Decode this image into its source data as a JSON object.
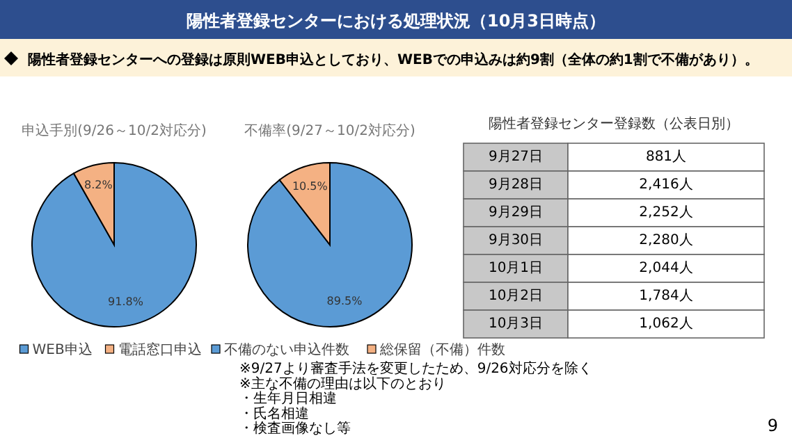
{
  "chart_data": [
    {
      "type": "other",
      "title": "陽性者登録センターにおける処理状況（10月3日時点）",
      "subtitle": "陽性者登録センターへの登録は原則WEB申込としており、WEBでの申込みは約9割（全体の約1割で不備があり）。",
      "annotations": [
        "9"
      ]
    },
    {
      "type": "pie",
      "title": "申込手別(9/26～10/2対応分)",
      "categories": [
        "WEB申込",
        "電話窓口申込"
      ],
      "values": [
        91.8,
        8.2
      ],
      "value_labels": [
        "91.8%",
        "8.2%"
      ],
      "colors": [
        "#5b9bd5",
        "#f4b183"
      ],
      "legend": "bottom"
    },
    {
      "type": "pie",
      "title": "不備率(9/27～10/2対応分)",
      "categories": [
        "不備のない申込件数",
        "総保留（不備）件数"
      ],
      "values": [
        89.5,
        10.5
      ],
      "value_labels": [
        "89.5%",
        "10.5%"
      ],
      "colors": [
        "#5b9bd5",
        "#f4b183"
      ],
      "legend": "bottom",
      "annotations": [
        "※9/27より審査手法を変更したため、9/26対応分を除く",
        "※主な不備の理由は以下のとおり",
        "・生年月日相違",
        "・氏名相違",
        "・検査画像なし等"
      ]
    },
    {
      "type": "other",
      "title": "陽性者登録センター登録数（公表日別）",
      "categories": [
        "9月27日",
        "9月28日",
        "9月29日",
        "9月30日",
        "10月1日",
        "10月2日",
        "10月3日"
      ],
      "values": [
        881,
        2416,
        2252,
        2280,
        2044,
        1784,
        1062
      ],
      "value_labels": [
        "881人",
        "2,416人",
        "2,252人",
        "2,280人",
        "2,044人",
        "1,784人",
        "1,062人"
      ]
    }
  ]
}
